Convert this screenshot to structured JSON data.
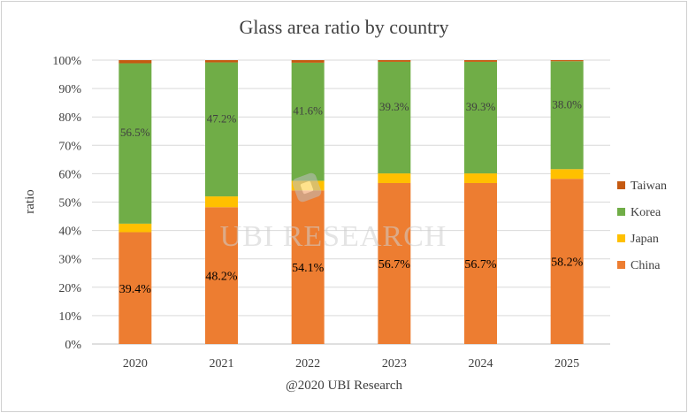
{
  "colors": {
    "China": "#ED7D31",
    "Japan": "#FFC000",
    "Korea": "#70AD47",
    "Taiwan": "#C55A11",
    "text": "#404040",
    "grid": "#d9d9d9"
  },
  "watermark": {
    "text": "UBI RESEARCH"
  },
  "chart_data": {
    "type": "bar",
    "stacked": true,
    "title": "Glass area ratio by country",
    "xlabel": "@2020 UBI Research",
    "ylabel": "ratio",
    "ylim": [
      0,
      100
    ],
    "y_ticks": [
      "0%",
      "10%",
      "20%",
      "30%",
      "40%",
      "50%",
      "60%",
      "70%",
      "80%",
      "90%",
      "100%"
    ],
    "grid": true,
    "legend_position": "right",
    "categories": [
      "2020",
      "2021",
      "2022",
      "2023",
      "2024",
      "2025"
    ],
    "series": [
      {
        "name": "China",
        "values": [
          39.4,
          48.2,
          54.1,
          56.7,
          56.7,
          58.2
        ],
        "labels": [
          "39.4%",
          "48.2%",
          "54.1%",
          "56.7%",
          "56.7%",
          "58.2%"
        ]
      },
      {
        "name": "Japan",
        "values": [
          3.0,
          3.8,
          3.4,
          3.4,
          3.4,
          3.4
        ],
        "labels": []
      },
      {
        "name": "Korea",
        "values": [
          56.5,
          47.2,
          41.6,
          39.3,
          39.3,
          38.0
        ],
        "labels": [
          "56.5%",
          "47.2%",
          "41.6%",
          "39.3%",
          "39.3%",
          "38.0%"
        ]
      },
      {
        "name": "Taiwan",
        "values": [
          1.1,
          0.8,
          0.9,
          0.6,
          0.6,
          0.4
        ],
        "labels": []
      }
    ],
    "legend_order": [
      "Taiwan",
      "Korea",
      "Japan",
      "China"
    ]
  }
}
